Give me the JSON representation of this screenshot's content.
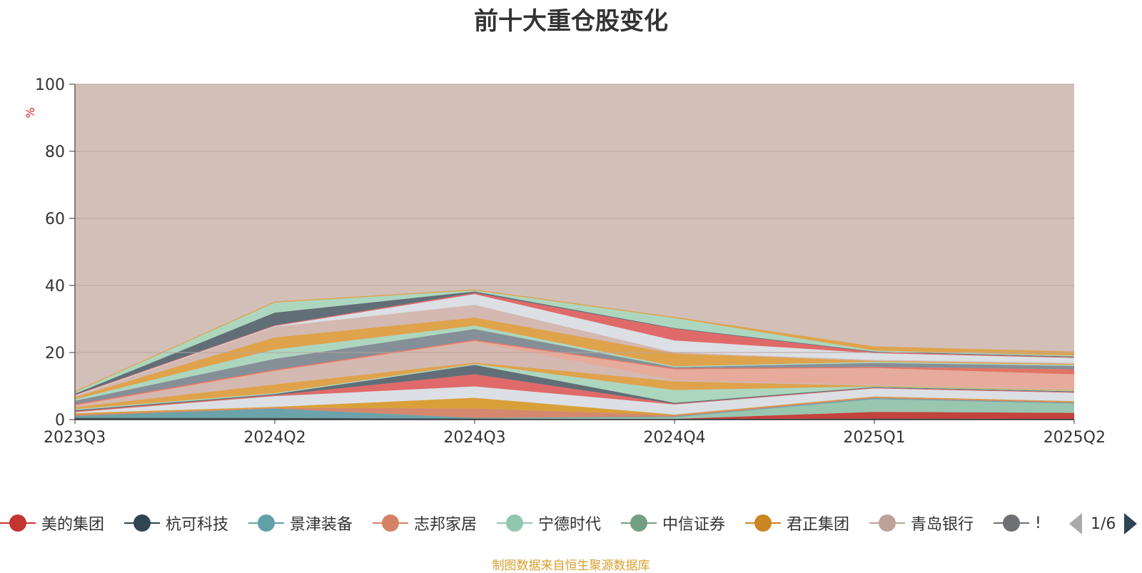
{
  "chart_data": {
    "type": "area",
    "title": "前十大重仓股变化",
    "ylabel": "%",
    "ylim": [
      0,
      100
    ],
    "yticks": [
      "0",
      "20",
      "40",
      "60",
      "80",
      "100"
    ],
    "categories": [
      "2023Q3",
      "2024Q2",
      "2024Q3",
      "2024Q4",
      "2025Q1",
      "2025Q2"
    ],
    "grid": true,
    "stacked": true,
    "background_color": "#d2bfb8",
    "layers": [
      {
        "color": "#2f4554",
        "values": [
          0.5,
          0.5,
          0.3,
          0.2,
          0.3,
          0.2
        ]
      },
      {
        "color": "#c23531",
        "values": [
          0,
          0,
          0,
          0,
          2.0,
          1.8
        ]
      },
      {
        "color": "#91c7ae",
        "values": [
          0,
          0,
          0,
          0.5,
          3.8,
          2.8
        ]
      },
      {
        "color": "#61a0a8",
        "values": [
          0.6,
          2.8,
          0.2,
          0.2,
          0.3,
          0.2
        ]
      },
      {
        "color": "#d48265",
        "values": [
          0.4,
          0.2,
          2.8,
          0.4,
          0.3,
          0.3
        ]
      },
      {
        "color": "#d99c2c",
        "values": [
          0.4,
          0.3,
          3.2,
          0.2,
          0.2,
          0.2
        ]
      },
      {
        "color": "#dde3ea",
        "values": [
          0.3,
          3.2,
          3.4,
          3.0,
          2.4,
          2.5
        ]
      },
      {
        "color": "#e06060",
        "values": [
          0.3,
          0.3,
          3.6,
          0.2,
          0.2,
          0.2
        ]
      },
      {
        "color": "#546570",
        "values": [
          0.3,
          0.3,
          2.8,
          0.3,
          0.2,
          0.2
        ]
      },
      {
        "color": "#a8d8c0",
        "values": [
          0.3,
          0.3,
          0.3,
          3.8,
          0.2,
          0.2
        ]
      },
      {
        "color": "#e0a040",
        "values": [
          0.6,
          2.6,
          0.4,
          2.6,
          0.2,
          0.2
        ]
      },
      {
        "color": "#d3b8b0",
        "values": [
          0.3,
          3.8,
          6.2,
          0.4,
          0.3,
          0.3
        ]
      },
      {
        "color": "#e8a898",
        "values": [
          0.3,
          0.3,
          0.3,
          3.2,
          5.0,
          4.4
        ]
      },
      {
        "color": "#e36b5a",
        "values": [
          0.3,
          0.3,
          0.3,
          0.3,
          0.3,
          1.5
        ]
      },
      {
        "color": "#7c8a95",
        "values": [
          1.0,
          3.2,
          3.2,
          0.3,
          1.2,
          1.0
        ]
      },
      {
        "color": "#a8d8c0",
        "values": [
          0.5,
          2.8,
          1.0,
          0.3,
          0.3,
          0.3
        ]
      },
      {
        "color": "#e0a040",
        "values": [
          0.6,
          3.6,
          2.4,
          3.8,
          0.3,
          0.3
        ]
      },
      {
        "color": "#d3b8b0",
        "values": [
          0.3,
          3.2,
          3.8,
          0.3,
          0.3,
          0.3
        ]
      },
      {
        "color": "#dde3ea",
        "values": [
          0.2,
          0.2,
          3.2,
          3.6,
          2.0,
          1.5
        ]
      },
      {
        "color": "#e06060",
        "values": [
          0.2,
          0.2,
          0.4,
          3.5,
          0.3,
          0.2
        ]
      },
      {
        "color": "#546570",
        "values": [
          0.3,
          3.8,
          0.4,
          0.2,
          0.2,
          0.2
        ]
      },
      {
        "color": "#a8d8c0",
        "values": [
          0.5,
          3.0,
          0.3,
          3.0,
          0.3,
          0.3
        ]
      },
      {
        "color": "#e0a040",
        "values": [
          0.3,
          0.3,
          0.3,
          0.3,
          1.2,
          1.2
        ]
      }
    ]
  },
  "legend": {
    "items": [
      {
        "label": "美的集团",
        "color": "#c23531"
      },
      {
        "label": "杭可科技",
        "color": "#2f4554"
      },
      {
        "label": "景津装备",
        "color": "#61a0a8"
      },
      {
        "label": "志邦家居",
        "color": "#d48265"
      },
      {
        "label": "宁德时代",
        "color": "#91c7ae"
      },
      {
        "label": "中信证券",
        "color": "#749f83"
      },
      {
        "label": "君正集团",
        "color": "#ca8622"
      },
      {
        "label": "青岛银行",
        "color": "#bda29a"
      },
      {
        "label": "!",
        "color": "#6e7074"
      }
    ],
    "page": "1/6"
  },
  "source_note": "制图数据来自恒生聚源数据库"
}
